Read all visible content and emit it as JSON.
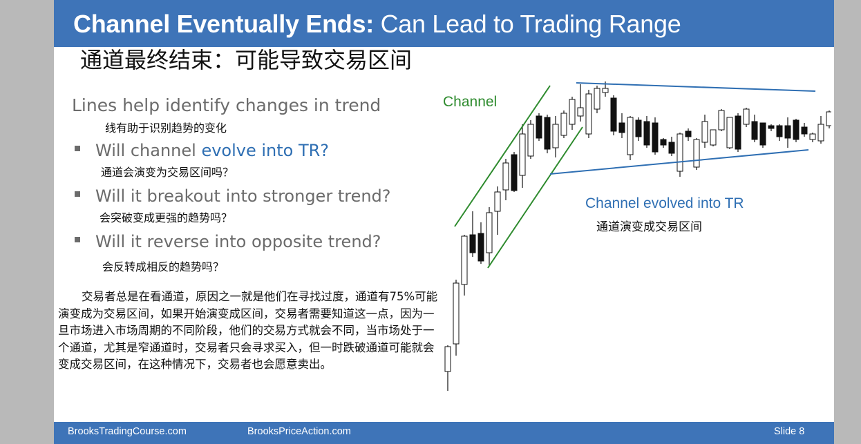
{
  "slide": {
    "title_bold": "Channel Eventually Ends:",
    "title_rest": " Can Lead to Trading Range",
    "title_cn": "通道最终结束：可能导致交易区间",
    "lead": "Lines help identify changes in trend",
    "lead_cn": "线有助于识别趋势的变化",
    "bullets": [
      {
        "pre": "Will channel ",
        "highlight": "evolve into TR?",
        "cn": "通道会演变为交易区间吗？"
      },
      {
        "text": "Will it breakout into stronger trend?",
        "cn": "会突破变成更强的趋势吗？"
      },
      {
        "text": "Will it reverse into opposite trend?",
        "cn": "会反转成相反的趋势吗？"
      }
    ],
    "paragraph": "交易者总是在看通道，原因之一就是他们在寻找过度，通道有75%可能演变成为交易区间，如果开始演变成区间，交易者需要知道这一点，因为一旦市场进入市场周期的不同阶段，他们的交易方式就会不同，当市场处于一个通道，尤其是窄通道时，交易者只会寻求买入，但一时跌破通道可能就会变成交易区间，在这种情况下，交易者也会愿意卖出。",
    "chart_labels": {
      "channel": "Channel",
      "evolved": "Channel evolved into TR",
      "evolved_cn": "通道演变成交易区间"
    },
    "colors": {
      "title_bar": "#3e74b8",
      "channel_lines": "#2e8b2e",
      "tr_lines": "#2f6fb3",
      "highlight": "#2f6fb3"
    },
    "footer": {
      "left": "BrooksTradingCourse.com",
      "center": "BrooksPriceAction.com",
      "slide": "Slide  8"
    }
  }
}
